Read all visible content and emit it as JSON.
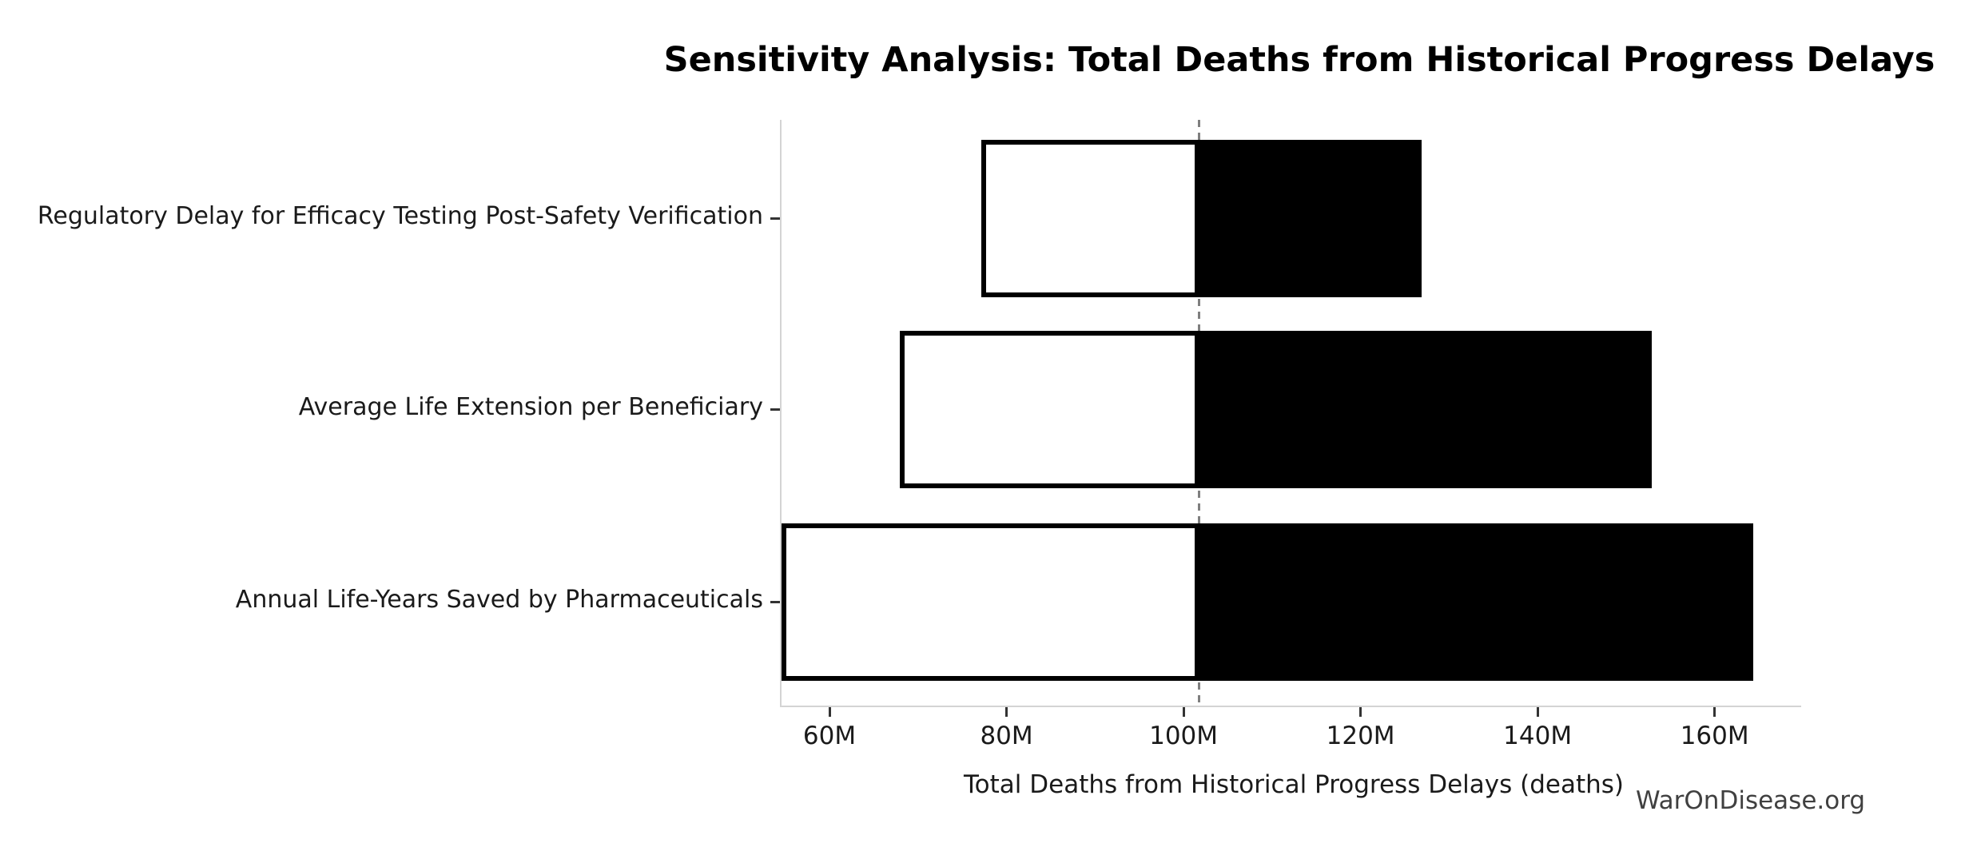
{
  "title": "Sensitivity Analysis: Total Deaths from Historical Progress Delays",
  "watermark": "WarOnDisease.org",
  "chart_data": {
    "type": "bar",
    "subtype": "tornado-sensitivity",
    "orientation": "horizontal",
    "title": "Sensitivity Analysis: Total Deaths from Historical Progress Delays",
    "xlabel": "Total Deaths from Historical Progress Delays (deaths)",
    "ylabel": "",
    "unit": "millions of deaths",
    "baseline_value": 101.6,
    "xlim": [
      54.4,
      169.6
    ],
    "grid": false,
    "legend": "none",
    "categories": [
      "Regulatory Delay for Efficacy Testing Post-Safety Verification",
      "Average Life Extension per Beneficiary",
      "Annual Life-Years Saved by Pharmaceuticals"
    ],
    "series": [
      {
        "name": "low_estimate",
        "values": [
          77.0,
          67.8,
          54.4
        ]
      },
      {
        "name": "high_estimate",
        "values": [
          126.7,
          152.7,
          164.2
        ]
      }
    ],
    "x_ticks": [
      {
        "value": 60,
        "label": "60M"
      },
      {
        "value": 80,
        "label": "80M"
      },
      {
        "value": 100,
        "label": "100M"
      },
      {
        "value": 120,
        "label": "120M"
      },
      {
        "value": 140,
        "label": "140M"
      },
      {
        "value": 160,
        "label": "160M"
      }
    ],
    "colors": {
      "low_fill": "#ffffff",
      "high_fill": "#000000",
      "bar_edge": "#000000",
      "baseline_line": "#7f7f7f",
      "spine": "#d4d4d4",
      "tick_mark": "#333333",
      "text": "#1a1a1a",
      "watermark": "#404040"
    }
  }
}
